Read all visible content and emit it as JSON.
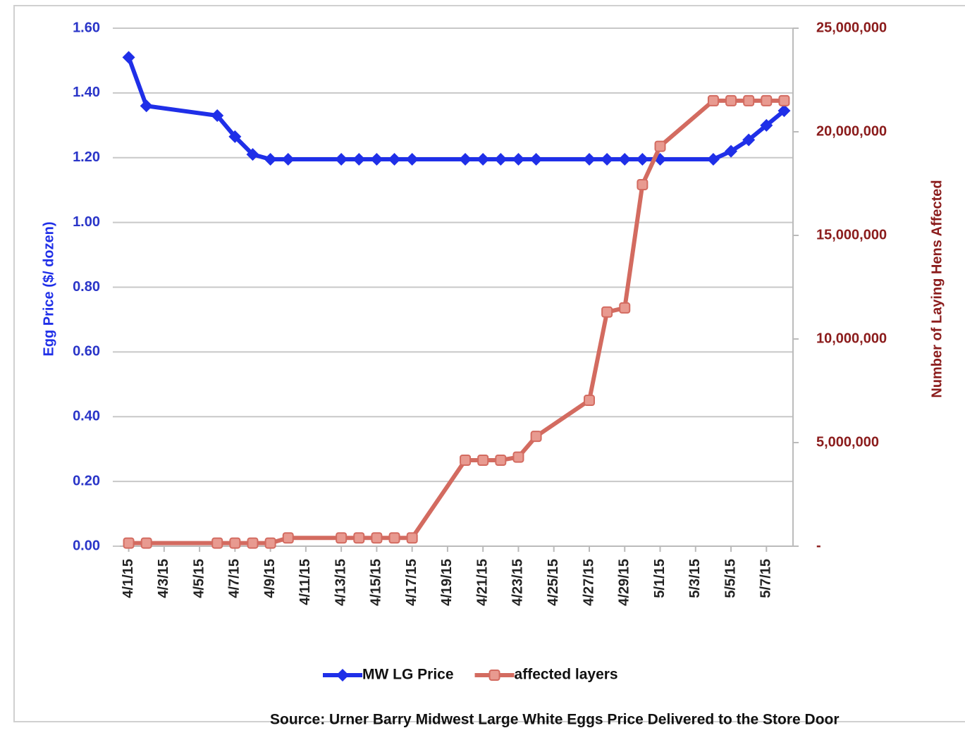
{
  "chart_data": {
    "type": "line",
    "y_label": "Egg Price ($/ dozen)",
    "y2_label": "Number of Laying Hens Affected",
    "source": "Source: Urner Barry Midwest Large White Eggs Price Delivered to the Store Door",
    "x": [
      "4/1/15",
      "4/2/15",
      "4/6/15",
      "4/7/15",
      "4/8/15",
      "4/9/15",
      "4/10/15",
      "4/13/15",
      "4/14/15",
      "4/15/15",
      "4/16/15",
      "4/17/15",
      "4/20/15",
      "4/21/15",
      "4/22/15",
      "4/23/15",
      "4/24/15",
      "4/27/15",
      "4/28/15",
      "4/29/15",
      "4/30/15",
      "5/1/15",
      "5/4/15",
      "5/5/15",
      "5/6/15",
      "5/7/15",
      "5/8/15"
    ],
    "xticks": [
      "4/1/15",
      "4/3/15",
      "4/5/15",
      "4/7/15",
      "4/9/15",
      "4/11/15",
      "4/13/15",
      "4/15/15",
      "4/17/15",
      "4/19/15",
      "4/21/15",
      "4/23/15",
      "4/25/15",
      "4/27/15",
      "4/29/15",
      "5/1/15",
      "5/3/15",
      "5/5/15",
      "5/7/15"
    ],
    "series": [
      {
        "name": "MW LG Price",
        "color": "#1f2fe8",
        "axis": "y",
        "marker": "diamond",
        "values": [
          1.51,
          1.36,
          1.33,
          1.265,
          1.21,
          1.195,
          1.195,
          1.195,
          1.195,
          1.195,
          1.195,
          1.195,
          1.195,
          1.195,
          1.195,
          1.195,
          1.195,
          1.195,
          1.195,
          1.195,
          1.195,
          1.195,
          1.195,
          1.22,
          1.255,
          1.3,
          1.345
        ]
      },
      {
        "name": "affected layers",
        "color": "#d36b60",
        "axis": "y2",
        "marker": "square",
        "values": [
          150000,
          150000,
          150000,
          150000,
          150000,
          150000,
          400000,
          400000,
          400000,
          400000,
          400000,
          400000,
          4150000,
          4150000,
          4150000,
          4300000,
          5300000,
          7040000,
          11300000,
          11500000,
          17450000,
          19300000,
          21500000,
          21500000,
          21500000,
          21500000,
          21500000
        ]
      }
    ],
    "ylim": [
      0,
      1.6
    ],
    "yticks": [
      {
        "value": 0,
        "label": "0.00"
      },
      {
        "value": 0.2,
        "label": "0.20"
      },
      {
        "value": 0.4,
        "label": "0.40"
      },
      {
        "value": 0.6,
        "label": "0.60"
      },
      {
        "value": 0.8,
        "label": "0.80"
      },
      {
        "value": 1.0,
        "label": "1.00"
      },
      {
        "value": 1.2,
        "label": "1.20"
      },
      {
        "value": 1.4,
        "label": "1.40"
      },
      {
        "value": 1.6,
        "label": "1.60"
      }
    ],
    "y2lim": [
      0,
      25000000
    ],
    "y2ticks": [
      {
        "value": 0,
        "label": "-"
      },
      {
        "value": 5000000,
        "label": "5,000,000"
      },
      {
        "value": 10000000,
        "label": "10,000,000"
      },
      {
        "value": 15000000,
        "label": "15,000,000"
      },
      {
        "value": 20000000,
        "label": "20,000,000"
      },
      {
        "value": 25000000,
        "label": "25,000,000"
      }
    ],
    "grid": true,
    "legend": "bottom"
  }
}
